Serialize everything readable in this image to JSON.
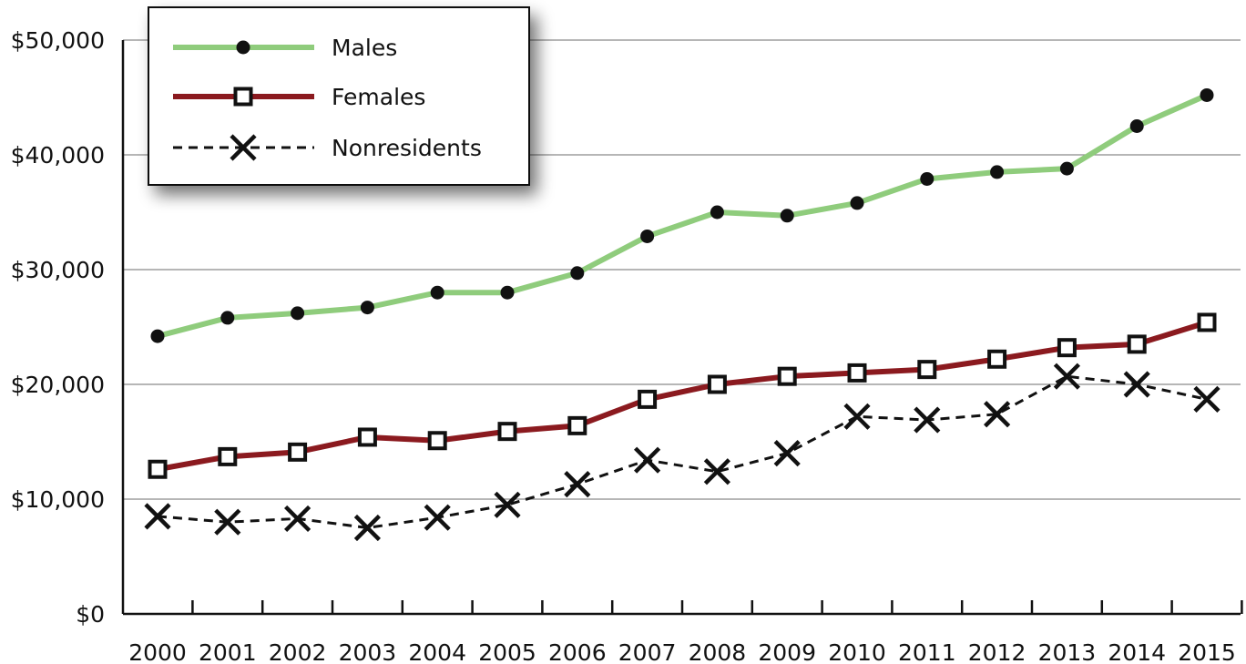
{
  "chart_data": {
    "type": "line",
    "categories": [
      "2000",
      "2001",
      "2002",
      "2003",
      "2004",
      "2005",
      "2006",
      "2007",
      "2008",
      "2009",
      "2010",
      "2011",
      "2012",
      "2013",
      "2014",
      "2015"
    ],
    "ylim": [
      0,
      50000
    ],
    "yticks": [
      "$0",
      "$10,000",
      "$20,000",
      "$30,000",
      "$40,000",
      "$50,000"
    ],
    "ytick_values": [
      0,
      10000,
      20000,
      30000,
      40000,
      50000
    ],
    "grid": true,
    "legend_position": "top-left",
    "series": [
      {
        "name": "Males",
        "color": "#8fcc7c",
        "marker": "filled-circle",
        "line": "solid",
        "values": [
          24200,
          25800,
          26200,
          26700,
          28000,
          28000,
          29700,
          32900,
          35000,
          34700,
          35800,
          37900,
          38500,
          38800,
          42500,
          45200
        ]
      },
      {
        "name": "Females",
        "color": "#8b1a1f",
        "marker": "hollow-square",
        "line": "solid",
        "values": [
          12600,
          13700,
          14100,
          15400,
          15100,
          15900,
          16400,
          18700,
          20000,
          20700,
          21000,
          21300,
          22200,
          23200,
          23500,
          25400
        ]
      },
      {
        "name": "Nonresidents",
        "color": "#111111",
        "marker": "x",
        "line": "dashed",
        "values": [
          8500,
          8000,
          8300,
          7500,
          8400,
          9500,
          11300,
          13400,
          12400,
          14000,
          17200,
          16900,
          17400,
          20700,
          20000,
          18700
        ]
      }
    ]
  }
}
